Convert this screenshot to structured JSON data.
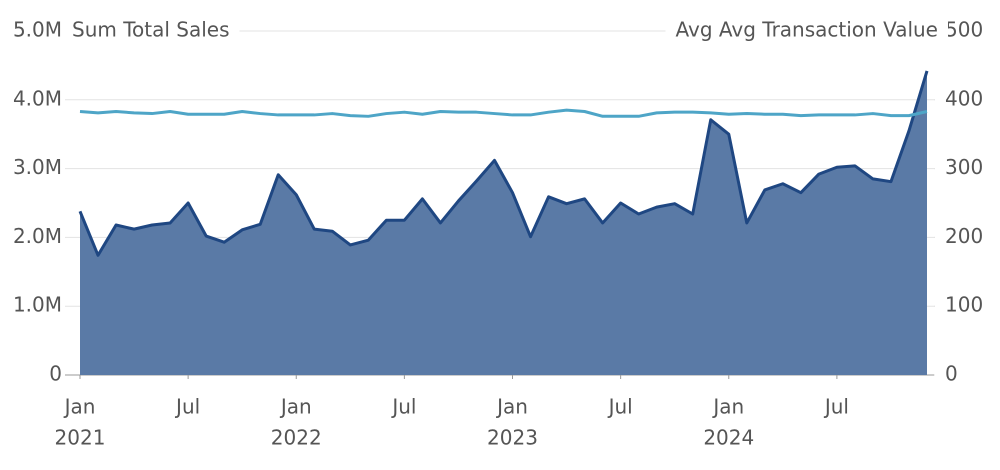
{
  "chart_data": {
    "type": "area",
    "y_label": "Sum Total Sales",
    "y2_label": "Avg Avg Transaction Value",
    "x": [
      "2021-01",
      "2021-02",
      "2021-03",
      "2021-04",
      "2021-05",
      "2021-06",
      "2021-07",
      "2021-08",
      "2021-09",
      "2021-10",
      "2021-11",
      "2021-12",
      "2022-01",
      "2022-02",
      "2022-03",
      "2022-04",
      "2022-05",
      "2022-06",
      "2022-07",
      "2022-08",
      "2022-09",
      "2022-10",
      "2022-11",
      "2022-12",
      "2023-01",
      "2023-02",
      "2023-03",
      "2023-04",
      "2023-05",
      "2023-06",
      "2023-07",
      "2023-08",
      "2023-09",
      "2023-10",
      "2023-11",
      "2023-12",
      "2024-01",
      "2024-02",
      "2024-03",
      "2024-04",
      "2024-05",
      "2024-06",
      "2024-07",
      "2024-08",
      "2024-09",
      "2024-10",
      "2024-11",
      "2024-12"
    ],
    "xticks": [
      {
        "value": "2021-01",
        "label": [
          "Jan",
          "2021"
        ]
      },
      {
        "value": "2021-07",
        "label": [
          "Jul"
        ]
      },
      {
        "value": "2022-01",
        "label": [
          "Jan",
          "2022"
        ]
      },
      {
        "value": "2022-07",
        "label": [
          "Jul"
        ]
      },
      {
        "value": "2023-01",
        "label": [
          "Jan",
          "2023"
        ]
      },
      {
        "value": "2023-07",
        "label": [
          "Jul"
        ]
      },
      {
        "value": "2024-01",
        "label": [
          "Jan",
          "2024"
        ]
      },
      {
        "value": "2024-07",
        "label": [
          "Jul"
        ]
      }
    ],
    "series": [
      {
        "name": "Sum Total Sales",
        "type": "area",
        "color": "#5a7aa6",
        "line_color": "#1f4782",
        "values": [
          2380000,
          1740000,
          2180000,
          2120000,
          2180000,
          2210000,
          2500000,
          2020000,
          1930000,
          2110000,
          2190000,
          2910000,
          2620000,
          2120000,
          2090000,
          1890000,
          1960000,
          2250000,
          2250000,
          2560000,
          2210000,
          2530000,
          2820000,
          3120000,
          2650000,
          2010000,
          2590000,
          2490000,
          2560000,
          2210000,
          2500000,
          2340000,
          2440000,
          2490000,
          2340000,
          3710000,
          3500000,
          2210000,
          2690000,
          2780000,
          2650000,
          2920000,
          3020000,
          3040000,
          2850000,
          2810000,
          3550000,
          4420000
        ]
      },
      {
        "name": "Avg Avg Transaction Value",
        "type": "line",
        "axis": "y2",
        "color": "#4ea5c7",
        "values": [
          383,
          381,
          383,
          381,
          380,
          383,
          379,
          379,
          379,
          383,
          380,
          378,
          378,
          378,
          380,
          377,
          376,
          380,
          382,
          379,
          383,
          382,
          382,
          380,
          378,
          378,
          382,
          385,
          383,
          376,
          376,
          376,
          381,
          382,
          382,
          381,
          379,
          380,
          379,
          379,
          377,
          378,
          378,
          378,
          380,
          377,
          377,
          383
        ]
      }
    ],
    "ylim": [
      0,
      5000000
    ],
    "yticks": [
      0,
      {
        "value": 1000000,
        "label": "1.0M"
      },
      {
        "value": 2000000,
        "label": "2.0M"
      },
      {
        "value": 3000000,
        "label": "3.0M"
      },
      {
        "value": 4000000,
        "label": "4.0M"
      },
      {
        "value": 5000000,
        "label": "5.0M"
      }
    ],
    "y2lim": [
      0,
      500
    ],
    "y2ticks": [
      0,
      100,
      200,
      300,
      400,
      500
    ],
    "grid": true
  }
}
